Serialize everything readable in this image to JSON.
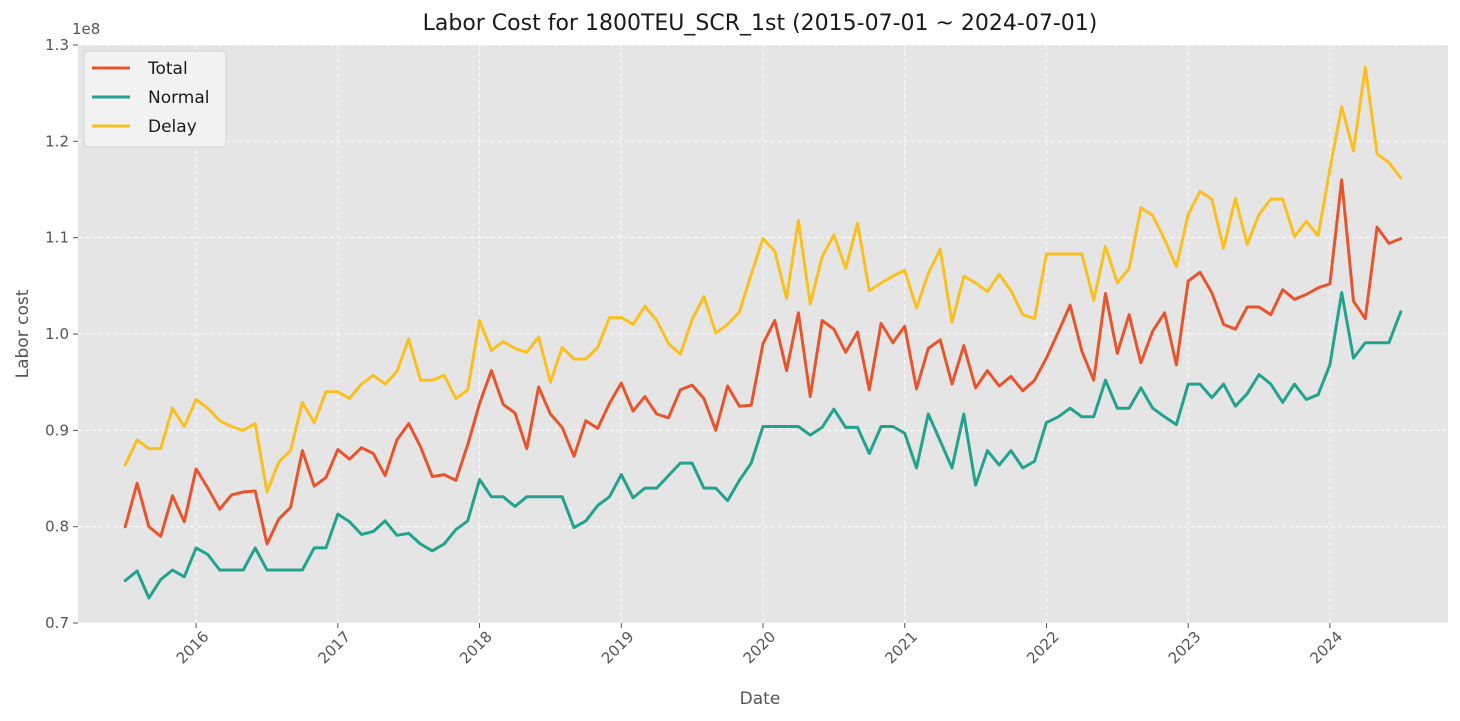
{
  "chart_data": {
    "type": "line",
    "title": "Labor Cost for 1800TEU_SCR_1st (2015-07-01 ~ 2024-07-01)",
    "xlabel": "Date",
    "ylabel": "Labor cost",
    "y_multiplier_label": "1e8",
    "x_start": "2015-07",
    "x_end": "2024-07",
    "xlim": [
      "2015-03",
      "2024-11"
    ],
    "ylim": [
      0.7,
      1.3
    ],
    "y_ticks": [
      0.7,
      0.8,
      0.9,
      1.0,
      1.1,
      1.2,
      1.3
    ],
    "x_ticks": [
      {
        "date": "2016-01",
        "label": "2016"
      },
      {
        "date": "2017-01",
        "label": "2017"
      },
      {
        "date": "2018-01",
        "label": "2018"
      },
      {
        "date": "2019-01",
        "label": "2019"
      },
      {
        "date": "2020-01",
        "label": "2020"
      },
      {
        "date": "2021-01",
        "label": "2021"
      },
      {
        "date": "2022-01",
        "label": "2022"
      },
      {
        "date": "2023-01",
        "label": "2023"
      },
      {
        "date": "2024-01",
        "label": "2024"
      }
    ],
    "grid": true,
    "legend_position": "top-left",
    "series": [
      {
        "name": "Total",
        "color": "#E8552D",
        "values": [
          0.8,
          0.845,
          0.8,
          0.79,
          0.832,
          0.805,
          0.86,
          0.84,
          0.818,
          0.833,
          0.836,
          0.837,
          0.782,
          0.808,
          0.82,
          0.879,
          0.842,
          0.851,
          0.88,
          0.87,
          0.882,
          0.876,
          0.853,
          0.89,
          0.907,
          0.883,
          0.852,
          0.854,
          0.848,
          0.885,
          0.928,
          0.962,
          0.927,
          0.918,
          0.881,
          0.945,
          0.917,
          0.903,
          0.873,
          0.91,
          0.902,
          0.928,
          0.949,
          0.92,
          0.935,
          0.917,
          0.913,
          0.942,
          0.947,
          0.933,
          0.9,
          0.946,
          0.925,
          0.926,
          0.99,
          1.014,
          0.962,
          1.022,
          0.935,
          1.014,
          1.005,
          0.981,
          1.002,
          0.942,
          1.011,
          0.991,
          1.008,
          0.943,
          0.985,
          0.994,
          0.948,
          0.988,
          0.944,
          0.962,
          0.946,
          0.956,
          0.941,
          0.952,
          0.975,
          1.002,
          1.03,
          0.982,
          0.952,
          1.042,
          0.98,
          1.02,
          0.97,
          1.003,
          1.022,
          0.968,
          1.055,
          1.064,
          1.043,
          1.01,
          1.005,
          1.028,
          1.028,
          1.02,
          1.046,
          1.036,
          1.041,
          1.048,
          1.052,
          1.16,
          1.034,
          1.016,
          1.111,
          1.094,
          1.099
        ]
      },
      {
        "name": "Normal",
        "color": "#22A38F",
        "values": [
          0.744,
          0.754,
          0.726,
          0.745,
          0.755,
          0.748,
          0.778,
          0.771,
          0.755,
          0.755,
          0.755,
          0.778,
          0.755,
          0.755,
          0.755,
          0.755,
          0.778,
          0.778,
          0.813,
          0.805,
          0.792,
          0.795,
          0.806,
          0.791,
          0.793,
          0.782,
          0.775,
          0.782,
          0.797,
          0.806,
          0.849,
          0.831,
          0.831,
          0.821,
          0.831,
          0.831,
          0.831,
          0.831,
          0.799,
          0.806,
          0.822,
          0.831,
          0.854,
          0.83,
          0.84,
          0.84,
          0.853,
          0.866,
          0.866,
          0.84,
          0.84,
          0.827,
          0.848,
          0.866,
          0.904,
          0.904,
          0.904,
          0.904,
          0.895,
          0.903,
          0.922,
          0.903,
          0.903,
          0.876,
          0.904,
          0.904,
          0.897,
          0.861,
          0.917,
          0.889,
          0.861,
          0.917,
          0.843,
          0.879,
          0.864,
          0.879,
          0.861,
          0.868,
          0.908,
          0.914,
          0.923,
          0.914,
          0.914,
          0.952,
          0.923,
          0.923,
          0.944,
          0.923,
          0.914,
          0.906,
          0.948,
          0.948,
          0.934,
          0.948,
          0.925,
          0.938,
          0.958,
          0.948,
          0.929,
          0.948,
          0.932,
          0.937,
          0.968,
          1.043,
          0.975,
          0.991,
          0.991,
          0.991,
          1.023
        ]
      },
      {
        "name": "Delay",
        "color": "#FBC020",
        "values": [
          0.864,
          0.89,
          0.881,
          0.881,
          0.923,
          0.904,
          0.932,
          0.923,
          0.91,
          0.904,
          0.9,
          0.907,
          0.836,
          0.867,
          0.879,
          0.929,
          0.908,
          0.94,
          0.94,
          0.933,
          0.948,
          0.957,
          0.948,
          0.961,
          0.995,
          0.952,
          0.952,
          0.957,
          0.933,
          0.942,
          1.014,
          0.983,
          0.992,
          0.985,
          0.981,
          0.997,
          0.95,
          0.986,
          0.974,
          0.974,
          0.986,
          1.017,
          1.017,
          1.01,
          1.029,
          1.014,
          0.99,
          0.979,
          1.015,
          1.039,
          1.001,
          1.01,
          1.023,
          1.062,
          1.099,
          1.086,
          1.037,
          1.118,
          1.031,
          1.08,
          1.103,
          1.068,
          1.115,
          1.045,
          1.053,
          1.06,
          1.066,
          1.027,
          1.063,
          1.088,
          1.012,
          1.06,
          1.053,
          1.044,
          1.062,
          1.045,
          1.02,
          1.016,
          1.083,
          1.083,
          1.083,
          1.083,
          1.035,
          1.091,
          1.053,
          1.068,
          1.131,
          1.123,
          1.098,
          1.07,
          1.124,
          1.148,
          1.14,
          1.089,
          1.141,
          1.093,
          1.124,
          1.14,
          1.14,
          1.101,
          1.117,
          1.102,
          1.171,
          1.236,
          1.19,
          1.277,
          1.187,
          1.178,
          1.162
        ]
      }
    ]
  }
}
